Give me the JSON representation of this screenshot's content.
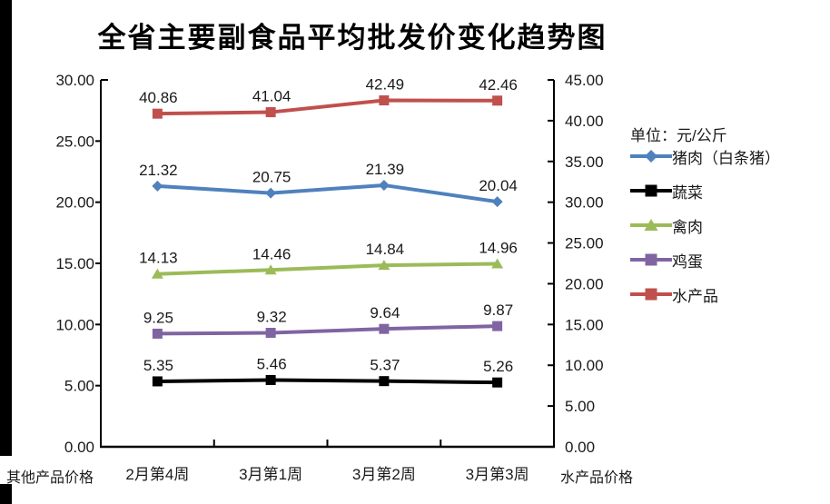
{
  "title": "全省主要副食品平均批发价变化趋势图",
  "chart_data": {
    "type": "line",
    "categories": [
      "2月第4周",
      "3月第1周",
      "3月第2周",
      "3月第3周"
    ],
    "series": [
      {
        "name": "猪肉（白条猪）",
        "values": [
          21.32,
          20.75,
          21.39,
          20.04
        ],
        "color": "#4F81BD",
        "marker": "diamond",
        "axis": "left"
      },
      {
        "name": "蔬菜",
        "values": [
          5.35,
          5.46,
          5.37,
          5.26
        ],
        "color": "#000000",
        "marker": "square",
        "axis": "left"
      },
      {
        "name": "禽肉",
        "values": [
          14.13,
          14.46,
          14.84,
          14.96
        ],
        "color": "#9BBB59",
        "marker": "triangle",
        "axis": "left"
      },
      {
        "name": "鸡蛋",
        "values": [
          9.25,
          9.32,
          9.64,
          9.87
        ],
        "color": "#8064A2",
        "marker": "square",
        "axis": "left"
      },
      {
        "name": "水产品",
        "values": [
          40.86,
          41.04,
          42.49,
          42.46
        ],
        "color": "#C0504D",
        "marker": "square",
        "axis": "right"
      }
    ],
    "left_axis": {
      "label": "其他产品价格",
      "min": 0,
      "max": 30,
      "step": 5
    },
    "right_axis": {
      "label": "水产品价格",
      "min": 0,
      "max": 45,
      "step": 5
    },
    "unit_label": "单位：元/公斤",
    "legend_position": "right",
    "grid": false,
    "data_labels": true
  }
}
